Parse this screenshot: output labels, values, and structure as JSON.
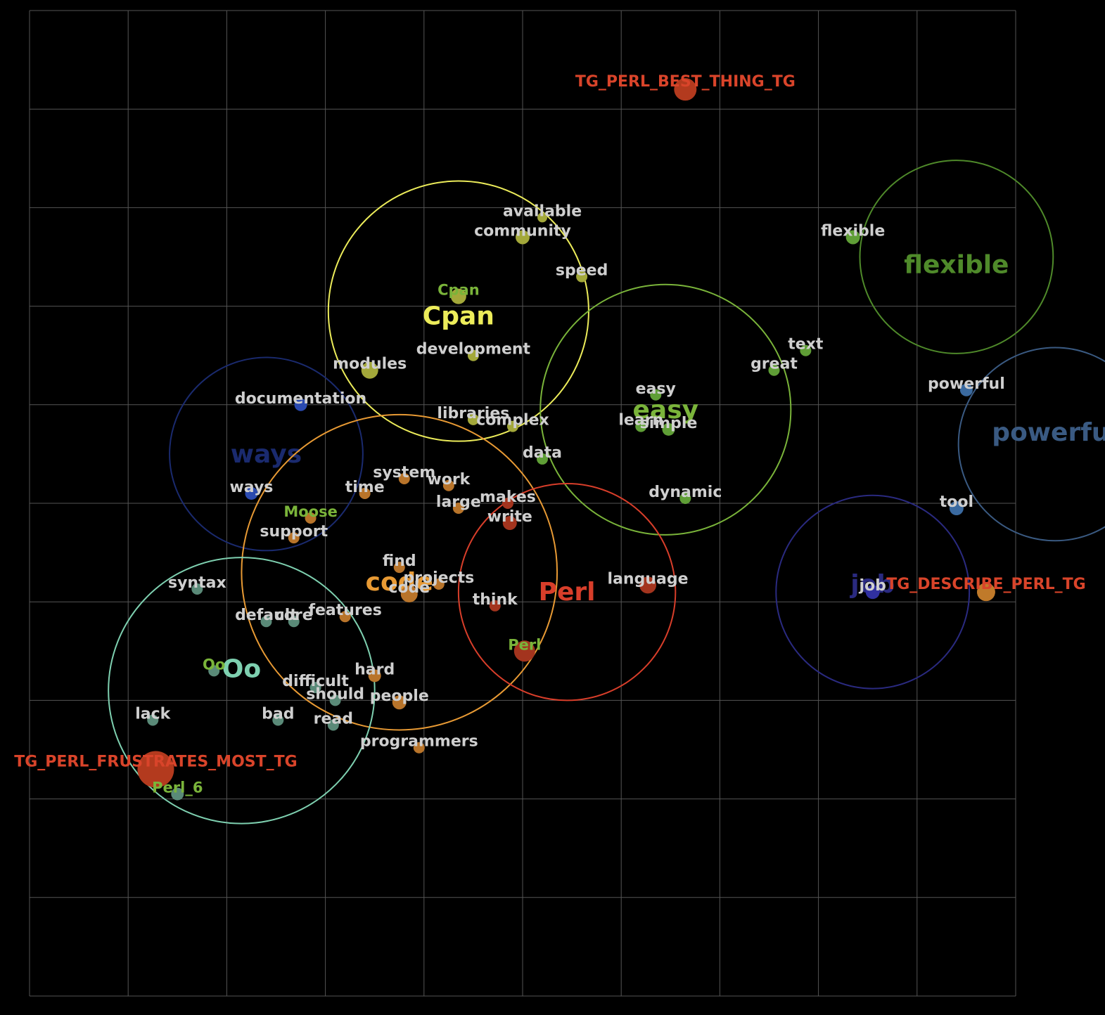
{
  "chart_data": {
    "type": "scatter",
    "title": "",
    "xlabel": "",
    "ylabel": "",
    "xlim": [
      0,
      10
    ],
    "ylim": [
      0,
      10
    ],
    "grid": true,
    "colors": {
      "background": "#000000",
      "grid": "#555555",
      "word_label": "#cfcfcf",
      "tag_label": "#d9442a"
    },
    "clusters": [
      {
        "name": "Cpan",
        "color": "#ecec5a",
        "cx": 4.35,
        "cy": 6.95,
        "r": 1.32,
        "label_x": 4.35,
        "label_y": 6.9,
        "label_size": 36
      },
      {
        "name": "flexible",
        "color": "#4f8a2a",
        "cx": 9.4,
        "cy": 7.5,
        "r": 0.98,
        "label_x": 9.4,
        "label_y": 7.42,
        "label_size": 36
      },
      {
        "name": "easy",
        "color": "#7ab43a",
        "cx": 6.45,
        "cy": 5.95,
        "r": 1.27,
        "label_x": 6.45,
        "label_y": 5.95,
        "label_size": 36
      },
      {
        "name": "powerful",
        "color": "#3a5a82",
        "cx": 10.4,
        "cy": 5.6,
        "r": 0.98,
        "label_x": 10.4,
        "label_y": 5.72,
        "label_size": 36
      },
      {
        "name": "ways",
        "color": "#1a2a6e",
        "cx": 2.4,
        "cy": 5.5,
        "r": 0.98,
        "label_x": 2.4,
        "label_y": 5.5,
        "label_size": 36
      },
      {
        "name": "code",
        "color": "#e89a34",
        "cx": 3.75,
        "cy": 4.3,
        "r": 1.6,
        "label_x": 3.75,
        "label_y": 4.2,
        "label_size": 36
      },
      {
        "name": "Perl",
        "color": "#d83e2a",
        "cx": 5.45,
        "cy": 4.1,
        "r": 1.1,
        "label_x": 5.45,
        "label_y": 4.1,
        "label_size": 36
      },
      {
        "name": "job",
        "color": "#2a2a80",
        "cx": 8.55,
        "cy": 4.1,
        "r": 0.98,
        "label_x": 8.55,
        "label_y": 4.18,
        "label_size": 36
      },
      {
        "name": "Oo",
        "color": "#7ed0b0",
        "cx": 2.15,
        "cy": 3.1,
        "r": 1.35,
        "label_x": 2.15,
        "label_y": 3.32,
        "label_size": 36
      }
    ],
    "points": [
      {
        "label": "TG_PERL_BEST_THING_TG",
        "x": 6.65,
        "y": 9.2,
        "color": "#b33a1e",
        "size": 16,
        "kind": "tag"
      },
      {
        "label": "TG_DESCRIBE_PERL_TG",
        "x": 9.7,
        "y": 4.1,
        "color": "#c07a2a",
        "size": 13,
        "kind": "tag"
      },
      {
        "label": "TG_PERL_FRUSTRATES_MOST_TG",
        "x": 1.28,
        "y": 2.3,
        "color": "#b33a1e",
        "size": 26,
        "kind": "tag"
      },
      {
        "label": "available",
        "x": 5.2,
        "y": 7.9,
        "color": "#a3a83a",
        "size": 7,
        "kind": "word"
      },
      {
        "label": "community",
        "x": 5.0,
        "y": 7.7,
        "color": "#a3a83a",
        "size": 10,
        "kind": "word"
      },
      {
        "label": "speed",
        "x": 5.6,
        "y": 7.3,
        "color": "#a3a83a",
        "size": 8,
        "kind": "word"
      },
      {
        "label": "Cpan",
        "x": 4.35,
        "y": 7.1,
        "color": "#a3a83a",
        "size": 11,
        "kind": "cluster-word"
      },
      {
        "label": "development",
        "x": 4.5,
        "y": 6.5,
        "color": "#a3a83a",
        "size": 8,
        "kind": "word"
      },
      {
        "label": "modules",
        "x": 3.45,
        "y": 6.35,
        "color": "#a3a83a",
        "size": 12,
        "kind": "word"
      },
      {
        "label": "libraries",
        "x": 4.5,
        "y": 5.85,
        "color": "#a3a83a",
        "size": 8,
        "kind": "word"
      },
      {
        "label": "complex",
        "x": 4.9,
        "y": 5.78,
        "color": "#a3a83a",
        "size": 8,
        "kind": "word"
      },
      {
        "label": "flexible",
        "x": 8.35,
        "y": 7.7,
        "color": "#5f9e36",
        "size": 10,
        "kind": "word"
      },
      {
        "label": "text",
        "x": 7.87,
        "y": 6.55,
        "color": "#5f9e36",
        "size": 8,
        "kind": "word"
      },
      {
        "label": "great",
        "x": 7.55,
        "y": 6.35,
        "color": "#5f9e36",
        "size": 8,
        "kind": "word"
      },
      {
        "label": "easy",
        "x": 6.35,
        "y": 6.1,
        "color": "#5f9e36",
        "size": 8,
        "kind": "word"
      },
      {
        "label": "learn",
        "x": 6.2,
        "y": 5.78,
        "color": "#5f9e36",
        "size": 8,
        "kind": "word"
      },
      {
        "label": "simple",
        "x": 6.48,
        "y": 5.75,
        "color": "#5f9e36",
        "size": 9,
        "kind": "word"
      },
      {
        "label": "data",
        "x": 5.2,
        "y": 5.45,
        "color": "#5f9e36",
        "size": 8,
        "kind": "word"
      },
      {
        "label": "dynamic",
        "x": 6.65,
        "y": 5.05,
        "color": "#5f9e36",
        "size": 8,
        "kind": "word"
      },
      {
        "label": "powerful",
        "x": 9.5,
        "y": 6.15,
        "color": "#3a6aa0",
        "size": 9,
        "kind": "word"
      },
      {
        "label": "tool",
        "x": 9.4,
        "y": 4.95,
        "color": "#3a6aa0",
        "size": 10,
        "kind": "word"
      },
      {
        "label": "documentation",
        "x": 2.75,
        "y": 6.0,
        "color": "#2a4ab0",
        "size": 9,
        "kind": "word"
      },
      {
        "label": "ways",
        "x": 2.25,
        "y": 5.1,
        "color": "#2a4ab0",
        "size": 9,
        "kind": "word"
      },
      {
        "label": "system",
        "x": 3.8,
        "y": 5.25,
        "color": "#b8742a",
        "size": 8,
        "kind": "word"
      },
      {
        "label": "time",
        "x": 3.4,
        "y": 5.1,
        "color": "#b8742a",
        "size": 8,
        "kind": "word"
      },
      {
        "label": "work",
        "x": 4.25,
        "y": 5.18,
        "color": "#b8742a",
        "size": 8,
        "kind": "word"
      },
      {
        "label": "large",
        "x": 4.35,
        "y": 4.95,
        "color": "#b8742a",
        "size": 8,
        "kind": "word"
      },
      {
        "label": "Moose",
        "x": 2.85,
        "y": 4.85,
        "color": "#b8742a",
        "size": 8,
        "kind": "cluster-word"
      },
      {
        "label": "support",
        "x": 2.68,
        "y": 4.65,
        "color": "#b8742a",
        "size": 8,
        "kind": "word"
      },
      {
        "label": "find",
        "x": 3.75,
        "y": 4.35,
        "color": "#b8742a",
        "size": 8,
        "kind": "word"
      },
      {
        "label": "projects",
        "x": 4.15,
        "y": 4.18,
        "color": "#b8742a",
        "size": 8,
        "kind": "word"
      },
      {
        "label": "code",
        "x": 3.85,
        "y": 4.08,
        "color": "#b8742a",
        "size": 12,
        "kind": "word"
      },
      {
        "label": "features",
        "x": 3.2,
        "y": 3.85,
        "color": "#b8742a",
        "size": 8,
        "kind": "word"
      },
      {
        "label": "hard",
        "x": 3.5,
        "y": 3.25,
        "color": "#b8742a",
        "size": 9,
        "kind": "word"
      },
      {
        "label": "people",
        "x": 3.75,
        "y": 2.98,
        "color": "#b8742a",
        "size": 10,
        "kind": "word"
      },
      {
        "label": "programmers",
        "x": 3.95,
        "y": 2.52,
        "color": "#b8742a",
        "size": 8,
        "kind": "word"
      },
      {
        "label": "makes",
        "x": 4.85,
        "y": 5.0,
        "color": "#a3341e",
        "size": 8,
        "kind": "word"
      },
      {
        "label": "write",
        "x": 4.87,
        "y": 4.8,
        "color": "#a3341e",
        "size": 10,
        "kind": "word"
      },
      {
        "label": "think",
        "x": 4.72,
        "y": 3.96,
        "color": "#a3341e",
        "size": 8,
        "kind": "word"
      },
      {
        "label": "language",
        "x": 6.27,
        "y": 4.17,
        "color": "#a3341e",
        "size": 12,
        "kind": "word"
      },
      {
        "label": "Perl",
        "x": 5.02,
        "y": 3.5,
        "color": "#a3341e",
        "size": 15,
        "kind": "cluster-word"
      },
      {
        "label": "job",
        "x": 8.55,
        "y": 4.1,
        "color": "#3030a0",
        "size": 10,
        "kind": "word"
      },
      {
        "label": "syntax",
        "x": 1.7,
        "y": 4.13,
        "color": "#5a8a78",
        "size": 8,
        "kind": "word"
      },
      {
        "label": "default",
        "x": 2.4,
        "y": 3.8,
        "color": "#5a8a78",
        "size": 8,
        "kind": "word"
      },
      {
        "label": "core",
        "x": 2.68,
        "y": 3.8,
        "color": "#5a8a78",
        "size": 8,
        "kind": "word"
      },
      {
        "label": "Oo",
        "x": 1.87,
        "y": 3.3,
        "color": "#5a8a78",
        "size": 8,
        "kind": "cluster-word"
      },
      {
        "label": "difficult",
        "x": 2.9,
        "y": 3.13,
        "color": "#5a8a78",
        "size": 8,
        "kind": "word"
      },
      {
        "label": "should",
        "x": 3.1,
        "y": 3.0,
        "color": "#5a8a78",
        "size": 8,
        "kind": "word"
      },
      {
        "label": "lack",
        "x": 1.25,
        "y": 2.8,
        "color": "#5a8a78",
        "size": 8,
        "kind": "word"
      },
      {
        "label": "bad",
        "x": 2.52,
        "y": 2.8,
        "color": "#5a8a78",
        "size": 8,
        "kind": "word"
      },
      {
        "label": "read",
        "x": 3.08,
        "y": 2.75,
        "color": "#5a8a78",
        "size": 8,
        "kind": "word"
      },
      {
        "label": "Perl_6",
        "x": 1.5,
        "y": 2.05,
        "color": "#5a8a78",
        "size": 9,
        "kind": "cluster-word"
      }
    ]
  }
}
